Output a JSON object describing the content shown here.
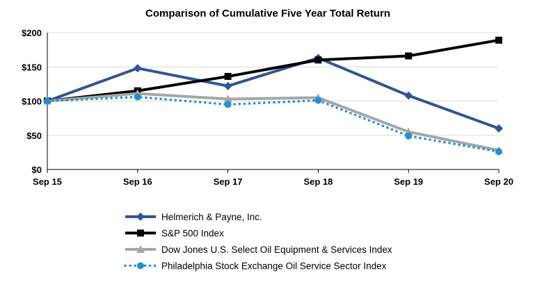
{
  "chart_data": {
    "type": "line",
    "title": "Comparison of Cumulative Five Year Total Return",
    "xlabel": "",
    "ylabel": "",
    "categories": [
      "Sep 15",
      "Sep 16",
      "Sep 17",
      "Sep 18",
      "Sep 19",
      "Sep 20"
    ],
    "ylim": [
      0,
      200
    ],
    "yticks": [
      0,
      50,
      100,
      150,
      200
    ],
    "ytick_labels": [
      "$0",
      "$50",
      "$100",
      "$150",
      "$200"
    ],
    "grid": true,
    "legend_position": "bottom",
    "series": [
      {
        "name": "Helmerich & Payne, Inc.",
        "color": "#2f5597",
        "marker": "diamond",
        "dash": "solid",
        "values": [
          100,
          148,
          122,
          163,
          108,
          60
        ]
      },
      {
        "name": "S&P 500 Index",
        "color": "#000000",
        "marker": "square",
        "dash": "solid",
        "values": [
          100,
          115,
          136,
          160,
          166,
          189
        ]
      },
      {
        "name": "Dow Jones U.S. Select Oil Equipment & Services Index",
        "color": "#a6a6a6",
        "marker": "triangle",
        "dash": "solid",
        "values": [
          100,
          111,
          103,
          105,
          55,
          28
        ]
      },
      {
        "name": "Philadelphia Stock Exchange Oil Service Sector Index",
        "color": "#1e90d6",
        "marker": "circle",
        "dash": "dotted",
        "values": [
          100,
          106,
          95,
          101,
          49,
          26
        ]
      }
    ]
  }
}
